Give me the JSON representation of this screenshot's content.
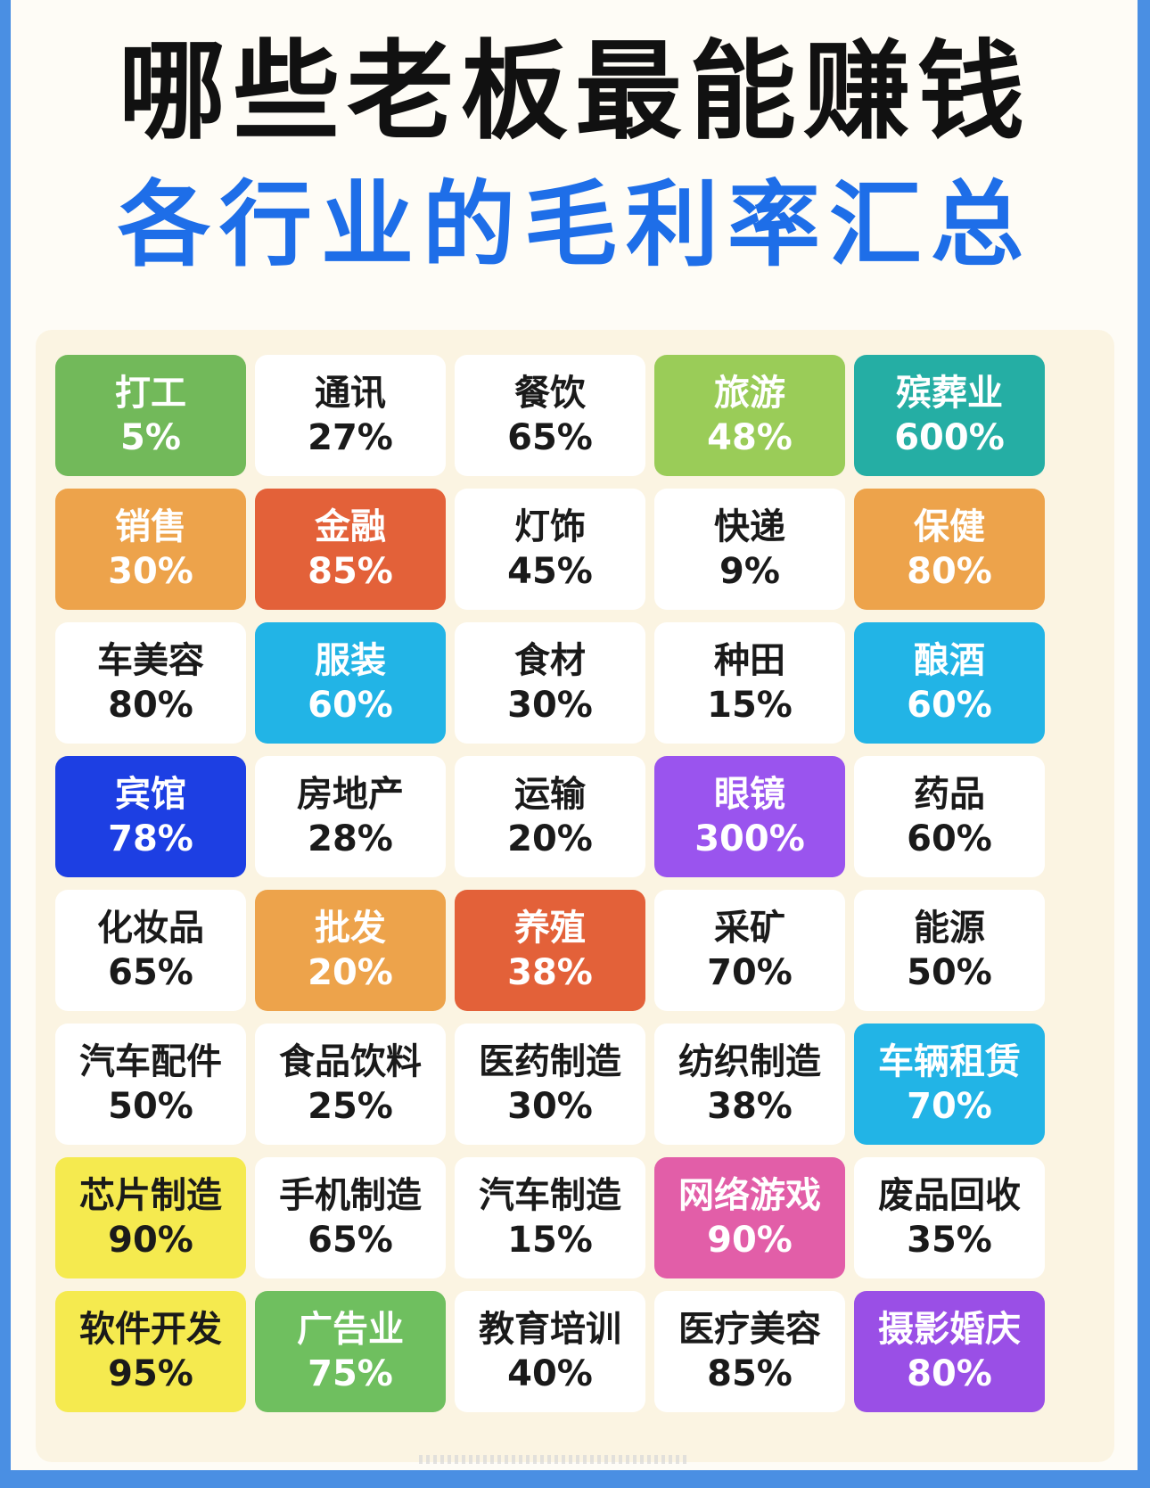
{
  "title": "哪些老板最能赚钱",
  "subtitle": "各行业的毛利率汇总",
  "colors": {
    "frame": "#4a8fe3",
    "subtitle": "#1e6ee8",
    "title": "#111111"
  },
  "industries": [
    {
      "name": "打工",
      "pct": "5%",
      "color": "green"
    },
    {
      "name": "通讯",
      "pct": "27%",
      "color": "white"
    },
    {
      "name": "餐饮",
      "pct": "65%",
      "color": "white"
    },
    {
      "name": "旅游",
      "pct": "48%",
      "color": "lime"
    },
    {
      "name": "殡葬业",
      "pct": "600%",
      "color": "teal"
    },
    {
      "name": "销售",
      "pct": "30%",
      "color": "orange"
    },
    {
      "name": "金融",
      "pct": "85%",
      "color": "red"
    },
    {
      "name": "灯饰",
      "pct": "45%",
      "color": "white"
    },
    {
      "name": "快递",
      "pct": "9%",
      "color": "white"
    },
    {
      "name": "保健",
      "pct": "80%",
      "color": "orange"
    },
    {
      "name": "车美容",
      "pct": "80%",
      "color": "white"
    },
    {
      "name": "服装",
      "pct": "60%",
      "color": "sky"
    },
    {
      "name": "食材",
      "pct": "30%",
      "color": "white"
    },
    {
      "name": "种田",
      "pct": "15%",
      "color": "white"
    },
    {
      "name": "酿酒",
      "pct": "60%",
      "color": "sky"
    },
    {
      "name": "宾馆",
      "pct": "78%",
      "color": "blue"
    },
    {
      "name": "房地产",
      "pct": "28%",
      "color": "white"
    },
    {
      "name": "运输",
      "pct": "20%",
      "color": "white"
    },
    {
      "name": "眼镜",
      "pct": "300%",
      "color": "purple"
    },
    {
      "name": "药品",
      "pct": "60%",
      "color": "white"
    },
    {
      "name": "化妆品",
      "pct": "65%",
      "color": "white"
    },
    {
      "name": "批发",
      "pct": "20%",
      "color": "orange"
    },
    {
      "name": "养殖",
      "pct": "38%",
      "color": "red"
    },
    {
      "name": "采矿",
      "pct": "70%",
      "color": "white"
    },
    {
      "name": "能源",
      "pct": "50%",
      "color": "white"
    },
    {
      "name": "汽车配件",
      "pct": "50%",
      "color": "white"
    },
    {
      "name": "食品饮料",
      "pct": "25%",
      "color": "white"
    },
    {
      "name": "医药制造",
      "pct": "30%",
      "color": "white"
    },
    {
      "name": "纺织制造",
      "pct": "38%",
      "color": "white"
    },
    {
      "name": "车辆租赁",
      "pct": "70%",
      "color": "sky"
    },
    {
      "name": "芯片制造",
      "pct": "90%",
      "color": "yellow"
    },
    {
      "name": "手机制造",
      "pct": "65%",
      "color": "white"
    },
    {
      "name": "汽车制造",
      "pct": "15%",
      "color": "white"
    },
    {
      "name": "网络游戏",
      "pct": "90%",
      "color": "pink"
    },
    {
      "name": "废品回收",
      "pct": "35%",
      "color": "white"
    },
    {
      "name": "软件开发",
      "pct": "95%",
      "color": "yellow"
    },
    {
      "name": "广告业",
      "pct": "75%",
      "color": "green2"
    },
    {
      "name": "教育培训",
      "pct": "40%",
      "color": "white"
    },
    {
      "name": "医疗美容",
      "pct": "85%",
      "color": "white"
    },
    {
      "name": "摄影婚庆",
      "pct": "80%",
      "color": "violet"
    }
  ]
}
